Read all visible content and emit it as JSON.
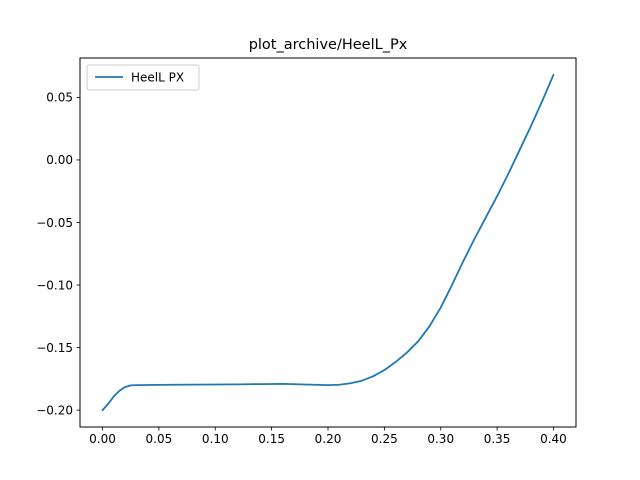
{
  "chart_data": {
    "type": "line",
    "title": "plot_archive/HeelL_Px",
    "xlabel": "",
    "ylabel": "",
    "xlim": [
      -0.02,
      0.42
    ],
    "ylim": [
      -0.2135,
      0.0815
    ],
    "x_ticks": [
      0.0,
      0.05,
      0.1,
      0.15,
      0.2,
      0.25,
      0.3,
      0.35,
      0.4
    ],
    "x_tick_labels": [
      "0.00",
      "0.05",
      "0.10",
      "0.15",
      "0.20",
      "0.25",
      "0.30",
      "0.35",
      "0.40"
    ],
    "y_ticks": [
      -0.2,
      -0.15,
      -0.1,
      -0.05,
      0.0,
      0.05
    ],
    "y_tick_labels": [
      "−0.20",
      "−0.15",
      "−0.10",
      "−0.05",
      "0.00",
      "0.05"
    ],
    "grid": false,
    "legend_position": "upper-left",
    "series": [
      {
        "name": "HeelL PX",
        "color": "#1f77b4",
        "x": [
          0.0,
          0.005,
          0.01,
          0.015,
          0.02,
          0.025,
          0.03,
          0.04,
          0.05,
          0.06,
          0.08,
          0.1,
          0.12,
          0.14,
          0.16,
          0.18,
          0.2,
          0.21,
          0.22,
          0.23,
          0.24,
          0.25,
          0.26,
          0.27,
          0.28,
          0.29,
          0.3,
          0.31,
          0.32,
          0.33,
          0.34,
          0.35,
          0.36,
          0.37,
          0.38,
          0.39,
          0.4
        ],
        "y": [
          -0.2,
          -0.195,
          -0.189,
          -0.1845,
          -0.1815,
          -0.1802,
          -0.18,
          -0.1799,
          -0.1798,
          -0.1797,
          -0.1796,
          -0.1795,
          -0.1794,
          -0.1792,
          -0.179,
          -0.1795,
          -0.18,
          -0.1797,
          -0.1785,
          -0.1765,
          -0.173,
          -0.168,
          -0.1615,
          -0.154,
          -0.145,
          -0.133,
          -0.118,
          -0.1,
          -0.081,
          -0.063,
          -0.046,
          -0.029,
          -0.011,
          0.008,
          0.027,
          0.047,
          0.068
        ]
      }
    ]
  }
}
